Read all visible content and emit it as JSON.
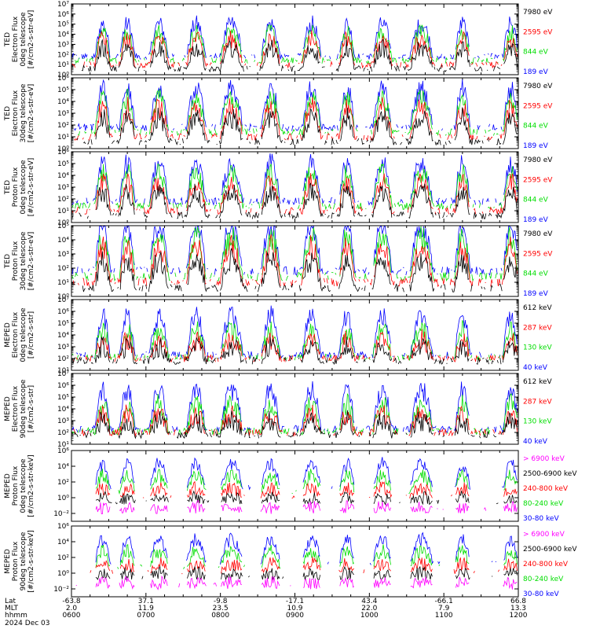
{
  "chart_data": {
    "type": "line",
    "time_axis": {
      "rows": [
        {
          "label": "Lat",
          "values": [
            "-63.8",
            "37.1",
            "-9.8",
            "-17.1",
            "43.4",
            "-66.1",
            "66.8"
          ]
        },
        {
          "label": "MLT",
          "values": [
            "2.0",
            "11.9",
            "23.5",
            "10.9",
            "22.0",
            "7.9",
            "13.3"
          ]
        },
        {
          "label": "hhmm",
          "values": [
            "0600",
            "0700",
            "0800",
            "0900",
            "1000",
            "1100",
            "1200"
          ]
        }
      ],
      "date": "2024 Dec 03",
      "hours": [
        6,
        7,
        8,
        9,
        10,
        11,
        12
      ],
      "xlim": [
        6,
        12
      ]
    },
    "panels": [
      {
        "ylabel": [
          "TED",
          "Electron Flux",
          "0deg telescope",
          "[#/cm2-s-str-eV]"
        ],
        "ylim_exp": [
          0,
          7
        ],
        "ticks": [
          "10⁰",
          "10¹",
          "10²",
          "10³",
          "10⁴",
          "10⁵",
          "10⁶",
          "10⁷"
        ],
        "series": [
          {
            "name": "7980 eV",
            "color": "#000000"
          },
          {
            "name": "2595 eV",
            "color": "#ff0000"
          },
          {
            "name": "844 eV",
            "color": "#00dd00"
          },
          {
            "name": "189 eV",
            "color": "#0000ff"
          }
        ]
      },
      {
        "ylabel": [
          "TED",
          "Electron Flux",
          "30deg telescope",
          "[#/cm2-s-str-eV]"
        ],
        "ylim_exp": [
          0,
          6
        ],
        "ticks": [
          "10⁰",
          "10¹",
          "10²",
          "10³",
          "10⁴",
          "10⁵",
          "10⁶"
        ],
        "series": [
          {
            "name": "7980 eV",
            "color": "#000000"
          },
          {
            "name": "2595 eV",
            "color": "#ff0000"
          },
          {
            "name": "844 eV",
            "color": "#00dd00"
          },
          {
            "name": "189 eV",
            "color": "#0000ff"
          }
        ]
      },
      {
        "ylabel": [
          "TED",
          "Proton Flux",
          "0deg telescope",
          "[#/cm2-s-str-eV]"
        ],
        "ylim_exp": [
          0,
          6
        ],
        "ticks": [
          "10⁰",
          "10¹",
          "10²",
          "10³",
          "10⁴",
          "10⁵",
          "10⁶"
        ],
        "series": [
          {
            "name": "7980 eV",
            "color": "#000000"
          },
          {
            "name": "2595 eV",
            "color": "#ff0000"
          },
          {
            "name": "844 eV",
            "color": "#00dd00"
          },
          {
            "name": "189 eV",
            "color": "#0000ff"
          }
        ]
      },
      {
        "ylabel": [
          "TED",
          "Proton Flux",
          "30deg telescope",
          "[#/cm2-s-str-eV]"
        ],
        "ylim_exp": [
          0,
          5
        ],
        "ticks": [
          "10⁰",
          "10¹",
          "10²",
          "10³",
          "10⁴",
          "10⁵"
        ],
        "series": [
          {
            "name": "7980 eV",
            "color": "#000000"
          },
          {
            "name": "2595 eV",
            "color": "#ff0000"
          },
          {
            "name": "844 eV",
            "color": "#00dd00"
          },
          {
            "name": "189 eV",
            "color": "#0000ff"
          }
        ]
      },
      {
        "ylabel": [
          "MEPED",
          "Electron Flux",
          "0deg telescope",
          "[#/cm2-s-str]"
        ],
        "ylim_exp": [
          1,
          7
        ],
        "ticks": [
          "10¹",
          "10²",
          "10³",
          "10⁴",
          "10⁵",
          "10⁶",
          "10⁷"
        ],
        "series": [
          {
            "name": "612 keV",
            "color": "#000000"
          },
          {
            "name": "287 keV",
            "color": "#ff0000"
          },
          {
            "name": "130 keV",
            "color": "#00dd00"
          },
          {
            "name": "40 keV",
            "color": "#0000ff"
          }
        ]
      },
      {
        "ylabel": [
          "MEPED",
          "Electron Flux",
          "90deg telescope",
          "[#/cm2-s-str]"
        ],
        "ylim_exp": [
          1,
          7
        ],
        "ticks": [
          "10¹",
          "10²",
          "10³",
          "10⁴",
          "10⁵",
          "10⁶",
          "10⁷"
        ],
        "series": [
          {
            "name": "612 keV",
            "color": "#000000"
          },
          {
            "name": "287 keV",
            "color": "#ff0000"
          },
          {
            "name": "130 keV",
            "color": "#00dd00"
          },
          {
            "name": "40 keV",
            "color": "#0000ff"
          }
        ]
      },
      {
        "ylabel": [
          "MEPED",
          "Proton Flux",
          "0deg telescope",
          "[#/cm2-s-str-keV]"
        ],
        "ylim_exp": [
          -3,
          6
        ],
        "ticks": [
          "10⁻²",
          "10⁰",
          "10²",
          "10⁴",
          "10⁶"
        ],
        "tick_exps": [
          -2,
          0,
          2,
          4,
          6
        ],
        "series": [
          {
            "name": "> 6900 keV",
            "color": "#ff00ff"
          },
          {
            "name": "2500-6900 keV",
            "color": "#000000"
          },
          {
            "name": "240-800 keV",
            "color": "#ff0000"
          },
          {
            "name": "80-240 keV",
            "color": "#00dd00"
          },
          {
            "name": "30-80 keV",
            "color": "#0000ff"
          }
        ]
      },
      {
        "ylabel": [
          "MEPED",
          "Proton Flux",
          "90deg telescope",
          "[#/cm2-s-str-keV]"
        ],
        "ylim_exp": [
          -3,
          6
        ],
        "ticks": [
          "10⁻²",
          "10⁰",
          "10²",
          "10⁴",
          "10⁶"
        ],
        "tick_exps": [
          -2,
          0,
          2,
          4,
          6
        ],
        "series": [
          {
            "name": "> 6900 keV",
            "color": "#ff00ff"
          },
          {
            "name": "2500-6900 keV",
            "color": "#000000"
          },
          {
            "name": "240-800 keV",
            "color": "#ff0000"
          },
          {
            "name": "80-240 keV",
            "color": "#00dd00"
          },
          {
            "name": "30-80 keV",
            "color": "#0000ff"
          }
        ]
      }
    ]
  }
}
